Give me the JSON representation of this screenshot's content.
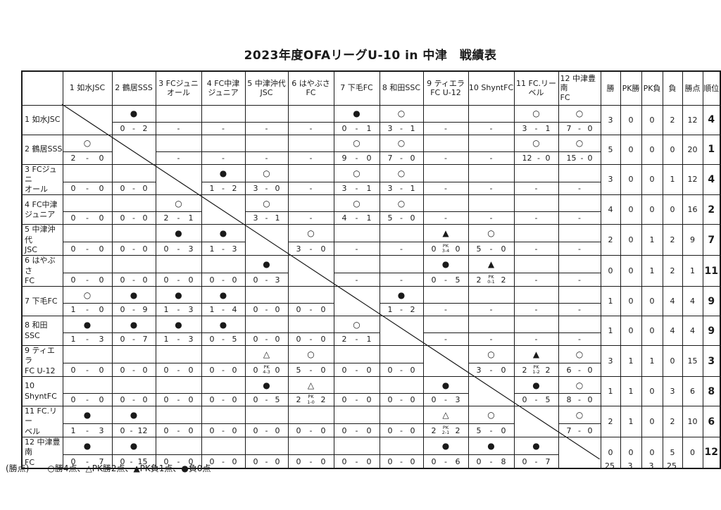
{
  "title": "2023年度OFAリーグU-10 in 中津　戦績表",
  "legend": {
    "label": "(勝点)",
    "items": "○勝4点、△PK勝2点、▲PK負1点、●負0点"
  },
  "totals": {
    "win": "25",
    "pk_win": "3",
    "pk_loss": "3",
    "loss": "25"
  },
  "table": {
    "stat_headers": [
      "勝",
      "PK勝",
      "PK負",
      "負",
      "勝点",
      "順位"
    ],
    "teams": [
      {
        "name": "如水JSC",
        "header_lines": [
          "1 如水JSC"
        ],
        "label_lines": [
          "1 如水JSC"
        ],
        "stats": {
          "win": "3",
          "pk_win": "0",
          "pk_loss": "0",
          "loss": "2",
          "points": "12",
          "rank": "4"
        },
        "cells": [
          {
            "self": true
          },
          {
            "sym": "●",
            "l": "0",
            "r": "2"
          },
          {
            "dash": true
          },
          {
            "dash": true
          },
          {
            "dash": true
          },
          {
            "dash": true
          },
          {
            "sym": "●",
            "l": "0",
            "r": "1"
          },
          {
            "sym": "○",
            "l": "3",
            "r": "1"
          },
          {
            "dash": true
          },
          {
            "dash": true
          },
          {
            "sym": "○",
            "l": "3",
            "r": "1"
          },
          {
            "sym": "○",
            "l": "7",
            "r": "0"
          }
        ]
      },
      {
        "name": "鶴居SSS",
        "header_lines": [
          "2 鶴居SSS"
        ],
        "label_lines": [
          "2 鶴居SSS"
        ],
        "stats": {
          "win": "5",
          "pk_win": "0",
          "pk_loss": "0",
          "loss": "0",
          "points": "20",
          "rank": "1"
        },
        "cells": [
          {
            "sym": "○",
            "l": "2",
            "r": "0"
          },
          {
            "self": true
          },
          {
            "dash": true
          },
          {
            "dash": true
          },
          {
            "dash": true
          },
          {
            "dash": true
          },
          {
            "sym": "○",
            "l": "9",
            "r": "0"
          },
          {
            "sym": "○",
            "l": "7",
            "r": "0"
          },
          {
            "dash": true
          },
          {
            "dash": true
          },
          {
            "sym": "○",
            "l": "12",
            "r": "0"
          },
          {
            "sym": "○",
            "l": "15",
            "r": "0"
          }
        ]
      },
      {
        "name": "FCジュニオール",
        "header_lines": [
          "3 FCジュニ",
          "オール"
        ],
        "label_lines": [
          "3 FCジュニ",
          "オール"
        ],
        "stats": {
          "win": "3",
          "pk_win": "0",
          "pk_loss": "0",
          "loss": "1",
          "points": "12",
          "rank": "4"
        },
        "cells": [
          {
            "l": "0",
            "r": "0"
          },
          {
            "l": "0",
            "r": "0"
          },
          {
            "self": true
          },
          {
            "sym": "●",
            "l": "1",
            "r": "2"
          },
          {
            "sym": "○",
            "l": "3",
            "r": "0"
          },
          {
            "dash": true
          },
          {
            "sym": "○",
            "l": "3",
            "r": "1"
          },
          {
            "sym": "○",
            "l": "3",
            "r": "1"
          },
          {
            "dash": true
          },
          {
            "dash": true
          },
          {
            "dash": true
          },
          {
            "dash": true
          }
        ]
      },
      {
        "name": "FC中津ジュニア",
        "header_lines": [
          "4 FC中津",
          "ジュニア"
        ],
        "label_lines": [
          "4 FC中津",
          "ジュニア"
        ],
        "stats": {
          "win": "4",
          "pk_win": "0",
          "pk_loss": "0",
          "loss": "0",
          "points": "16",
          "rank": "2"
        },
        "cells": [
          {
            "l": "0",
            "r": "0"
          },
          {
            "l": "0",
            "r": "0"
          },
          {
            "sym": "○",
            "l": "2",
            "r": "1"
          },
          {
            "self": true
          },
          {
            "sym": "○",
            "l": "3",
            "r": "1"
          },
          {
            "dash": true
          },
          {
            "sym": "○",
            "l": "4",
            "r": "1"
          },
          {
            "sym": "○",
            "l": "5",
            "r": "0"
          },
          {
            "dash": true
          },
          {
            "dash": true
          },
          {
            "dash": true
          },
          {
            "dash": true
          }
        ]
      },
      {
        "name": "中津沖代JSC",
        "header_lines": [
          "5 中津沖代",
          "JSC"
        ],
        "label_lines": [
          "5 中津沖代",
          "JSC"
        ],
        "stats": {
          "win": "2",
          "pk_win": "0",
          "pk_loss": "1",
          "loss": "2",
          "points": "9",
          "rank": "7"
        },
        "cells": [
          {
            "l": "0",
            "r": "0"
          },
          {
            "l": "0",
            "r": "0"
          },
          {
            "sym": "●",
            "l": "0",
            "r": "3"
          },
          {
            "sym": "●",
            "l": "1",
            "r": "3"
          },
          {
            "self": true
          },
          {
            "sym": "○",
            "l": "3",
            "r": "0"
          },
          {
            "dash": true
          },
          {
            "dash": true
          },
          {
            "sym": "▲",
            "l": "0",
            "r": "0",
            "pk": "3-4"
          },
          {
            "sym": "○",
            "l": "5",
            "r": "0"
          },
          {
            "dash": true
          },
          {
            "dash": true
          }
        ]
      },
      {
        "name": "はやぶさFC",
        "header_lines": [
          "6 はやぶさ",
          "FC"
        ],
        "label_lines": [
          "6 はやぶさ",
          "FC"
        ],
        "stats": {
          "win": "0",
          "pk_win": "0",
          "pk_loss": "1",
          "loss": "2",
          "points": "1",
          "rank": "11"
        },
        "cells": [
          {
            "l": "0",
            "r": "0"
          },
          {
            "l": "0",
            "r": "0"
          },
          {
            "l": "0",
            "r": "0"
          },
          {
            "l": "0",
            "r": "0"
          },
          {
            "sym": "●",
            "l": "0",
            "r": "3"
          },
          {
            "self": true
          },
          {
            "dash": true
          },
          {
            "dash": true
          },
          {
            "sym": "●",
            "l": "0",
            "r": "5"
          },
          {
            "sym": "▲",
            "l": "2",
            "r": "2",
            "pk": "0-1"
          },
          {
            "dash": true
          },
          {
            "dash": true
          }
        ]
      },
      {
        "name": "下毛FC",
        "header_lines": [
          "7 下毛FC"
        ],
        "label_lines": [
          "7 下毛FC"
        ],
        "stats": {
          "win": "1",
          "pk_win": "0",
          "pk_loss": "0",
          "loss": "4",
          "points": "4",
          "rank": "9"
        },
        "cells": [
          {
            "sym": "○",
            "l": "1",
            "r": "0"
          },
          {
            "sym": "●",
            "l": "0",
            "r": "9"
          },
          {
            "sym": "●",
            "l": "1",
            "r": "3"
          },
          {
            "sym": "●",
            "l": "1",
            "r": "4"
          },
          {
            "l": "0",
            "r": "0"
          },
          {
            "l": "0",
            "r": "0"
          },
          {
            "self": true
          },
          {
            "sym": "●",
            "l": "1",
            "r": "2"
          },
          {
            "dash": true
          },
          {
            "dash": true
          },
          {
            "dash": true
          },
          {
            "dash": true
          }
        ]
      },
      {
        "name": "和田SSC",
        "header_lines": [
          "8 和田SSC"
        ],
        "label_lines": [
          "8 和田SSC"
        ],
        "stats": {
          "win": "1",
          "pk_win": "0",
          "pk_loss": "0",
          "loss": "4",
          "points": "4",
          "rank": "9"
        },
        "cells": [
          {
            "sym": "●",
            "l": "1",
            "r": "3"
          },
          {
            "sym": "●",
            "l": "0",
            "r": "7"
          },
          {
            "sym": "●",
            "l": "1",
            "r": "3"
          },
          {
            "sym": "●",
            "l": "0",
            "r": "5"
          },
          {
            "l": "0",
            "r": "0"
          },
          {
            "l": "0",
            "r": "0"
          },
          {
            "sym": "○",
            "l": "2",
            "r": "1"
          },
          {
            "self": true
          },
          {
            "dash": true
          },
          {
            "dash": true
          },
          {
            "dash": true
          },
          {
            "dash": true
          }
        ]
      },
      {
        "name": "ティエラFC U-12",
        "header_lines": [
          "9 ティエラ",
          "FC U-12"
        ],
        "label_lines": [
          "9 ティエラ",
          "FC U-12"
        ],
        "stats": {
          "win": "3",
          "pk_win": "1",
          "pk_loss": "1",
          "loss": "0",
          "points": "15",
          "rank": "3"
        },
        "cells": [
          {
            "l": "0",
            "r": "0"
          },
          {
            "l": "0",
            "r": "0"
          },
          {
            "l": "0",
            "r": "0"
          },
          {
            "l": "0",
            "r": "0"
          },
          {
            "sym": "△",
            "l": "0",
            "r": "0",
            "pk": "4-3"
          },
          {
            "sym": "○",
            "l": "5",
            "r": "0"
          },
          {
            "l": "0",
            "r": "0"
          },
          {
            "l": "0",
            "r": "0"
          },
          {
            "self": true
          },
          {
            "sym": "○",
            "l": "3",
            "r": "0"
          },
          {
            "sym": "▲",
            "l": "2",
            "r": "2",
            "pk": "1-2"
          },
          {
            "sym": "○",
            "l": "6",
            "r": "0"
          }
        ]
      },
      {
        "name": "ShyntFC",
        "header_lines": [
          "10 ShyntFC"
        ],
        "label_lines": [
          "10 ShyntFC"
        ],
        "stats": {
          "win": "1",
          "pk_win": "1",
          "pk_loss": "0",
          "loss": "3",
          "points": "6",
          "rank": "8"
        },
        "cells": [
          {
            "l": "0",
            "r": "0"
          },
          {
            "l": "0",
            "r": "0"
          },
          {
            "l": "0",
            "r": "0"
          },
          {
            "l": "0",
            "r": "0"
          },
          {
            "sym": "●",
            "l": "0",
            "r": "5"
          },
          {
            "sym": "△",
            "l": "2",
            "r": "2",
            "pk": "1-0"
          },
          {
            "l": "0",
            "r": "0"
          },
          {
            "l": "0",
            "r": "0"
          },
          {
            "sym": "●",
            "l": "0",
            "r": "3"
          },
          {
            "self": true
          },
          {
            "sym": "●",
            "l": "0",
            "r": "5"
          },
          {
            "sym": "○",
            "l": "8",
            "r": "0"
          }
        ]
      },
      {
        "name": "FC.リーベル",
        "header_lines": [
          "11 FC.リー",
          "ベル"
        ],
        "label_lines": [
          "11 FC.リー",
          "ベル"
        ],
        "stats": {
          "win": "2",
          "pk_win": "1",
          "pk_loss": "0",
          "loss": "2",
          "points": "10",
          "rank": "6"
        },
        "cells": [
          {
            "sym": "●",
            "l": "1",
            "r": "3"
          },
          {
            "sym": "●",
            "l": "0",
            "r": "12"
          },
          {
            "l": "0",
            "r": "0"
          },
          {
            "l": "0",
            "r": "0"
          },
          {
            "l": "0",
            "r": "0"
          },
          {
            "l": "0",
            "r": "0"
          },
          {
            "l": "0",
            "r": "0"
          },
          {
            "l": "0",
            "r": "0"
          },
          {
            "sym": "△",
            "l": "2",
            "r": "2",
            "pk": "2-1"
          },
          {
            "sym": "○",
            "l": "5",
            "r": "0"
          },
          {
            "self": true
          },
          {
            "sym": "○",
            "l": "7",
            "r": "0"
          }
        ]
      },
      {
        "name": "中津豊南FC",
        "header_lines": [
          "12 中津豊南",
          "FC"
        ],
        "label_lines": [
          "12 中津豊南",
          "FC"
        ],
        "stats": {
          "win": "0",
          "pk_win": "0",
          "pk_loss": "0",
          "loss": "5",
          "points": "0",
          "rank": "12"
        },
        "cells": [
          {
            "sym": "●",
            "l": "0",
            "r": "7"
          },
          {
            "sym": "●",
            "l": "0",
            "r": "15"
          },
          {
            "l": "0",
            "r": "0"
          },
          {
            "l": "0",
            "r": "0"
          },
          {
            "l": "0",
            "r": "0"
          },
          {
            "l": "0",
            "r": "0"
          },
          {
            "l": "0",
            "r": "0"
          },
          {
            "l": "0",
            "r": "0"
          },
          {
            "sym": "●",
            "l": "0",
            "r": "6"
          },
          {
            "sym": "●",
            "l": "0",
            "r": "8"
          },
          {
            "sym": "●",
            "l": "0",
            "r": "7"
          },
          {
            "self": true
          }
        ]
      }
    ]
  }
}
